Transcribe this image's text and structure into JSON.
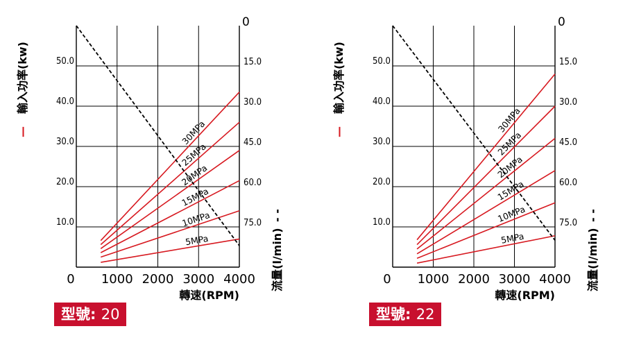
{
  "chart_data": [
    {
      "type": "line",
      "model_label": "型號:",
      "model_value": "20",
      "x_ticks": [
        "0",
        "1000",
        "2000",
        "3000",
        "4000"
      ],
      "xlabel": "轉速(RPM)",
      "xlim": [
        0,
        4000
      ],
      "left_ylabel": "輸入功率(kw)",
      "left_ylabel_mark": "—",
      "left_ylim": [
        0,
        60
      ],
      "left_ticks": [
        "10.0",
        "20.0",
        "30.0",
        "40.0",
        "50.0"
      ],
      "left_tick_values": [
        10,
        20,
        30,
        40,
        50
      ],
      "right_ylabel": "流量(l/min)",
      "right_ylabel_mark": "- -",
      "right_ylim": [
        90,
        0
      ],
      "right_ticks": [
        "0",
        "15.0",
        "30.0",
        "45.0",
        "60.0",
        "75.0"
      ],
      "right_tick_values": [
        0,
        15,
        30,
        45,
        60,
        75
      ],
      "grid": true,
      "line_color": "#d71920",
      "series": [
        {
          "name": "5MPa",
          "x": [
            600,
            4000
          ],
          "y": [
            1.2,
            7.0
          ]
        },
        {
          "name": "10MPa",
          "x": [
            600,
            4000
          ],
          "y": [
            2.5,
            14.0
          ]
        },
        {
          "name": "15MPa",
          "x": [
            600,
            4000
          ],
          "y": [
            3.6,
            21.5
          ]
        },
        {
          "name": "20MPa",
          "x": [
            600,
            4000
          ],
          "y": [
            4.6,
            29.0
          ]
        },
        {
          "name": "25MPa",
          "x": [
            600,
            4000
          ],
          "y": [
            5.6,
            36.0
          ]
        },
        {
          "name": "30MPa",
          "x": [
            600,
            4000
          ],
          "y": [
            6.6,
            43.5
          ]
        }
      ],
      "flow_series": {
        "x": [
          0,
          4000
        ],
        "y": [
          0,
          82
        ]
      }
    },
    {
      "type": "line",
      "model_label": "型號:",
      "model_value": "22",
      "x_ticks": [
        "0",
        "1000",
        "2000",
        "3000",
        "4000"
      ],
      "xlabel": "轉速(RPM)",
      "xlim": [
        0,
        4000
      ],
      "left_ylabel": "輸入功率(kw)",
      "left_ylabel_mark": "—",
      "left_ylim": [
        0,
        60
      ],
      "left_ticks": [
        "10.0",
        "20.0",
        "30.0",
        "40.0",
        "50.0"
      ],
      "left_tick_values": [
        10,
        20,
        30,
        40,
        50
      ],
      "right_ylabel": "流量(l/min)",
      "right_ylabel_mark": "- -",
      "right_ylim": [
        90,
        0
      ],
      "right_ticks": [
        "0",
        "15.0",
        "30.0",
        "45.0",
        "60.0",
        "75.0"
      ],
      "right_tick_values": [
        0,
        15,
        30,
        45,
        60,
        75
      ],
      "grid": true,
      "line_color": "#d71920",
      "series": [
        {
          "name": "5MPa",
          "x": [
            600,
            4000
          ],
          "y": [
            1.0,
            7.8
          ]
        },
        {
          "name": "10MPa",
          "x": [
            600,
            4000
          ],
          "y": [
            2.2,
            16.0
          ]
        },
        {
          "name": "15MPa",
          "x": [
            600,
            4000
          ],
          "y": [
            3.3,
            24.0
          ]
        },
        {
          "name": "20MPa",
          "x": [
            600,
            4000
          ],
          "y": [
            4.5,
            32.0
          ]
        },
        {
          "name": "25MPa",
          "x": [
            600,
            4000
          ],
          "y": [
            5.6,
            40.0
          ]
        },
        {
          "name": "30MPa",
          "x": [
            600,
            4000
          ],
          "y": [
            6.8,
            48.0
          ]
        }
      ],
      "flow_series": {
        "x": [
          0,
          4000
        ],
        "y": [
          0,
          80
        ]
      }
    }
  ]
}
